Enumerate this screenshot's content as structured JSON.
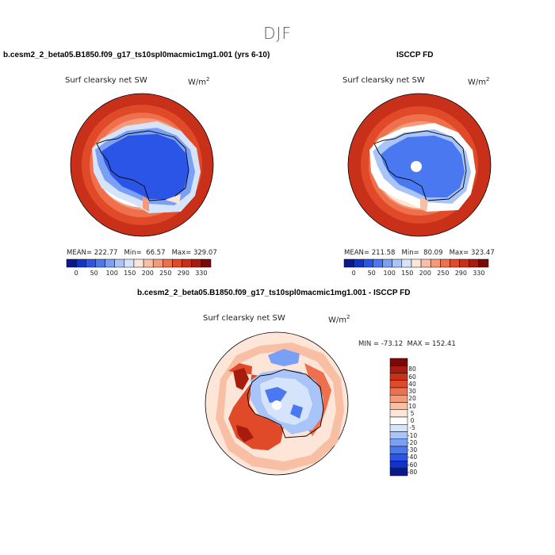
{
  "title": "DJF",
  "panels": [
    {
      "title": "b.cesm2_2_beta05.B1850.f09_g17_ts10spl0macmic1mg1.001 (yrs 6-10)",
      "variable": "Surf clearsky net SW",
      "units": "W/m",
      "units_sup": "2",
      "stats": "MEAN= 222.77   Min=  66.57   Max= 329.07"
    },
    {
      "title": "ISCCP FD",
      "variable": "Surf clearsky net SW",
      "units": "W/m",
      "units_sup": "2",
      "stats": "MEAN= 211.58   Min=  80.09   Max= 323.47"
    }
  ],
  "abs_colorbar": {
    "colors": [
      "#0a1a8c",
      "#1133c8",
      "#2a55e6",
      "#4a78f0",
      "#7aa0f5",
      "#a9c4f8",
      "#d6e4fb",
      "#fde6d8",
      "#f9bfa4",
      "#f59a78",
      "#ef704c",
      "#e04a28",
      "#c8301a",
      "#a81c10",
      "#7a0a08"
    ],
    "labels": [
      "0",
      "50",
      "100",
      "150",
      "200",
      "250",
      "290",
      "330"
    ]
  },
  "diff_panel": {
    "title": "b.cesm2_2_beta05.B1850.f09_g17_ts10spl0macmic1mg1.001 - ISCCP FD",
    "variable": "Surf clearsky net SW",
    "units": "W/m",
    "units_sup": "2",
    "stats": "MIN = -73.12  MAX = 152.41",
    "colorbar": {
      "colors": [
        "#7a0a08",
        "#a81c10",
        "#c8301a",
        "#e04a28",
        "#ef704c",
        "#f59a78",
        "#f9bfa4",
        "#fde6d8",
        "#ffffff",
        "#d6e4fb",
        "#a9c4f8",
        "#7aa0f5",
        "#4a78f0",
        "#2a55e6",
        "#1133c8",
        "#0a1a8c"
      ],
      "labels": [
        "80",
        "60",
        "40",
        "30",
        "20",
        "10",
        "5",
        "0",
        "-5",
        "-10",
        "-20",
        "-30",
        "-40",
        "-60",
        "-80"
      ]
    }
  }
}
